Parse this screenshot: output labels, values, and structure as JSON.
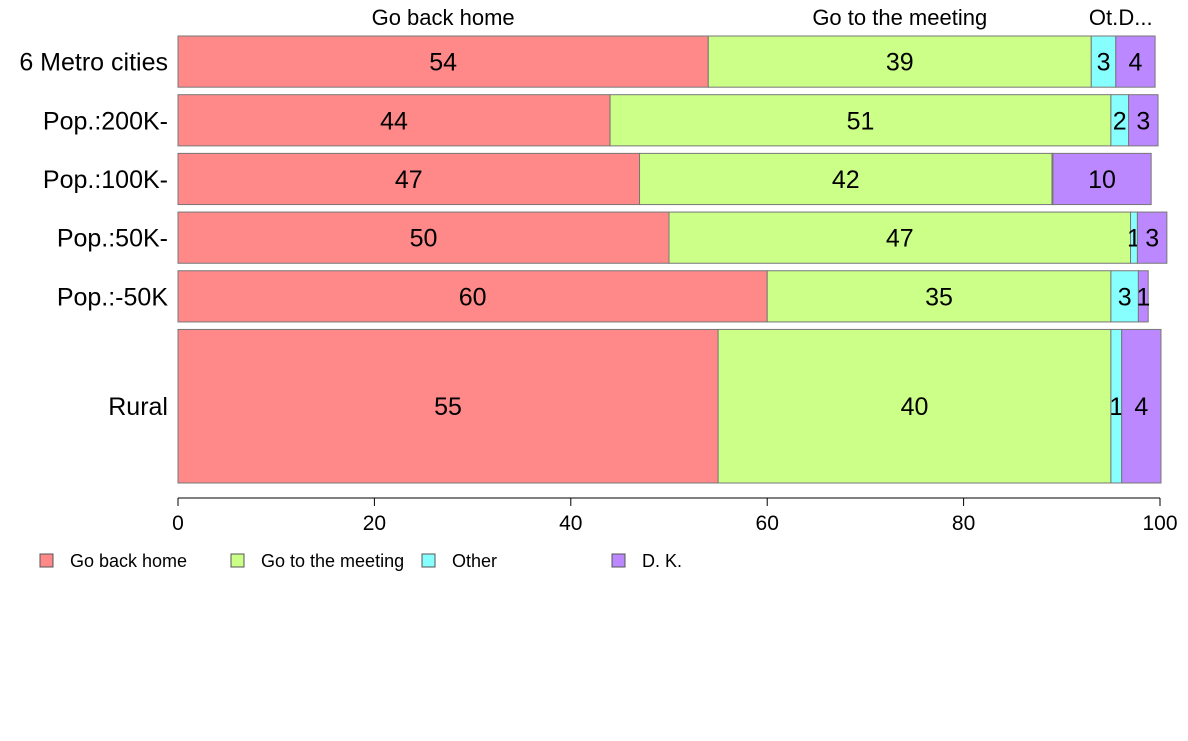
{
  "chart_data": {
    "type": "bar",
    "orientation": "horizontal",
    "stacked": true,
    "categories": [
      "6 Metro cities",
      "Pop.:200K-",
      "Pop.:100K-",
      "Pop.:50K-",
      "Pop.:-50K",
      "Rural"
    ],
    "bar_weights": [
      1,
      1,
      1,
      1,
      1,
      3
    ],
    "series": [
      {
        "name": "Go back home",
        "color": "#ff8888",
        "values": [
          54,
          44,
          47,
          50,
          60,
          55
        ],
        "labels": [
          "54",
          "44",
          "47",
          "50",
          "60",
          "55"
        ]
      },
      {
        "name": "Go to the meeting",
        "color": "#ccff88",
        "values": [
          39,
          51,
          42,
          47,
          35,
          40
        ],
        "labels": [
          "39",
          "51",
          "42",
          "47",
          "35",
          "40"
        ]
      },
      {
        "name": "Other",
        "color": "#88ffff",
        "values": [
          2.5,
          1.8,
          0.1,
          0.7,
          2.8,
          1.1
        ],
        "labels": [
          "3",
          "2",
          "",
          "1",
          "3",
          "1"
        ]
      },
      {
        "name": "D. K.",
        "color": "#bb88ff",
        "values": [
          4,
          3,
          10,
          3,
          1,
          4
        ],
        "labels": [
          "4",
          "3",
          "10",
          "3",
          "1",
          "4"
        ]
      }
    ],
    "top_labels": [
      "Go back home",
      "Go to the meeting",
      "Ot.",
      "D..."
    ],
    "xlim": [
      0,
      100
    ],
    "xticks": [
      0,
      20,
      40,
      60,
      80,
      100
    ],
    "legend": {
      "placement": "bottom-left",
      "entries": [
        "Go back home",
        "Go to the meeting",
        "Other",
        "D. K."
      ]
    },
    "grid": false
  }
}
